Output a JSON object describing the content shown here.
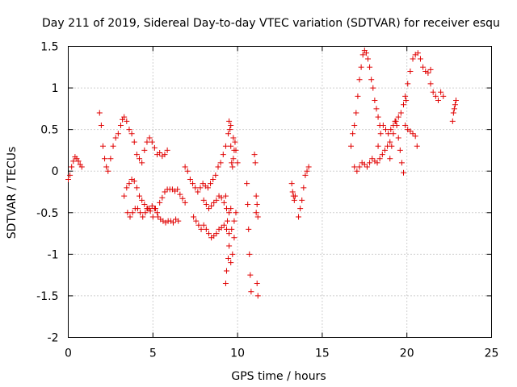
{
  "chart_data": {
    "type": "scatter",
    "title": "Day 211 of 2019, Sidereal Day-to-day VTEC variation (SDTVAR) for receiver esqu",
    "xlabel": "GPS time / hours",
    "ylabel": "SDTVAR / TECUs",
    "xlim": [
      0,
      25
    ],
    "ylim": [
      -2,
      1.5
    ],
    "xticks": [
      0,
      5,
      10,
      15,
      20,
      25
    ],
    "yticks": [
      -2,
      -1.5,
      -1,
      -0.5,
      0,
      0.5,
      1,
      1.5
    ],
    "xtick_labels": [
      "0",
      "5",
      "10",
      "15",
      "20",
      "25"
    ],
    "ytick_labels": [
      "-2",
      "-1.5",
      "-1",
      "-0.5",
      "0",
      "0.5",
      "1",
      "1.5"
    ],
    "grid": true,
    "marker": "+",
    "color": "#e00000",
    "series": [
      {
        "name": "t0",
        "x": [
          0.0,
          0.1,
          0.2,
          0.3,
          0.4,
          0.5,
          0.6,
          0.7,
          0.8
        ],
        "y": [
          -0.1,
          -0.05,
          0.05,
          0.12,
          0.17,
          0.15,
          0.12,
          0.08,
          0.05
        ]
      },
      {
        "name": "t1",
        "x": [
          1.85,
          1.95,
          2.05,
          2.15,
          2.25,
          2.35,
          2.5,
          2.65,
          2.8,
          2.95,
          3.1,
          3.2,
          3.3,
          3.45,
          3.6,
          3.75,
          3.9,
          4.05,
          4.2,
          4.35,
          4.5,
          4.65,
          4.8,
          4.95,
          5.1,
          5.25,
          5.4,
          5.55,
          5.7,
          5.85
        ],
        "y": [
          0.7,
          0.55,
          0.3,
          0.15,
          0.05,
          0.0,
          0.15,
          0.3,
          0.4,
          0.45,
          0.55,
          0.62,
          0.65,
          0.6,
          0.5,
          0.45,
          0.35,
          0.2,
          0.15,
          0.1,
          0.25,
          0.35,
          0.4,
          0.35,
          0.28,
          0.2,
          0.22,
          0.18,
          0.2,
          0.25
        ]
      },
      {
        "name": "t2",
        "x": [
          3.3,
          3.45,
          3.6,
          3.75,
          3.9,
          4.05,
          4.2,
          4.35,
          4.5,
          4.65,
          4.8,
          4.95,
          5.1,
          5.25,
          5.4,
          5.55,
          5.7,
          5.85,
          6.0,
          6.15,
          6.3,
          6.45,
          6.6,
          6.75,
          6.9
        ],
        "y": [
          -0.3,
          -0.2,
          -0.15,
          -0.1,
          -0.12,
          -0.2,
          -0.3,
          -0.35,
          -0.4,
          -0.45,
          -0.45,
          -0.42,
          -0.45,
          -0.5,
          -0.38,
          -0.32,
          -0.25,
          -0.22,
          -0.22,
          -0.22,
          -0.24,
          -0.22,
          -0.28,
          -0.33,
          -0.38
        ]
      },
      {
        "name": "t3",
        "x": [
          3.5,
          3.65,
          3.8,
          3.95,
          4.1,
          4.25,
          4.4,
          4.55,
          4.7,
          4.85,
          5.0,
          5.15,
          5.3,
          5.45,
          5.6,
          5.75,
          5.9,
          6.05,
          6.2,
          6.35,
          6.5
        ],
        "y": [
          -0.5,
          -0.55,
          -0.5,
          -0.45,
          -0.45,
          -0.5,
          -0.55,
          -0.5,
          -0.45,
          -0.48,
          -0.55,
          -0.45,
          -0.55,
          -0.58,
          -0.6,
          -0.62,
          -0.6,
          -0.6,
          -0.62,
          -0.58,
          -0.6
        ]
      },
      {
        "name": "t4",
        "x": [
          6.9,
          7.05,
          7.2,
          7.35,
          7.5,
          7.65,
          7.8,
          7.95,
          8.1,
          8.25,
          8.4,
          8.55,
          8.7,
          8.85,
          9.0,
          9.15,
          9.3,
          9.45,
          9.6,
          9.75,
          9.9,
          10.0
        ],
        "y": [
          0.05,
          0.0,
          -0.1,
          -0.15,
          -0.2,
          -0.25,
          -0.2,
          -0.15,
          -0.18,
          -0.2,
          -0.15,
          -0.1,
          -0.05,
          0.05,
          0.1,
          0.2,
          0.3,
          0.45,
          0.55,
          0.4,
          0.25,
          0.1
        ]
      },
      {
        "name": "t5",
        "x": [
          7.4,
          7.55,
          7.7,
          7.85,
          8.0,
          8.15,
          8.3,
          8.45,
          8.6,
          8.75,
          8.9,
          9.05,
          9.2,
          9.35,
          9.5,
          9.65,
          9.8
        ],
        "y": [
          -0.55,
          -0.6,
          -0.65,
          -0.7,
          -0.65,
          -0.7,
          -0.75,
          -0.8,
          -0.78,
          -0.75,
          -0.7,
          -0.68,
          -0.65,
          -0.7,
          -0.75,
          -0.7,
          -0.6
        ]
      },
      {
        "name": "t6",
        "x": [
          8.0,
          8.15,
          8.3,
          8.45,
          8.6,
          8.75,
          8.9,
          9.05,
          9.2,
          9.35,
          9.5,
          9.6
        ],
        "y": [
          -0.35,
          -0.4,
          -0.45,
          -0.42,
          -0.38,
          -0.35,
          -0.3,
          -0.32,
          -0.38,
          -0.45,
          -0.5,
          -0.45
        ]
      },
      {
        "name": "t7",
        "x": [
          9.3,
          9.4,
          9.5,
          9.6,
          9.7,
          9.8,
          9.9
        ],
        "y": [
          -0.3,
          -0.6,
          -0.9,
          -1.1,
          -1.0,
          -0.8,
          -0.5
        ]
      },
      {
        "name": "t8",
        "x": [
          9.5,
          9.55,
          9.6,
          9.65,
          9.7,
          9.75,
          9.8,
          9.85
        ],
        "y": [
          0.6,
          0.5,
          0.3,
          0.1,
          0.05,
          0.15,
          0.25,
          0.35
        ]
      },
      {
        "name": "t9",
        "x": [
          9.3,
          9.35,
          9.45
        ],
        "y": [
          -1.35,
          -1.2,
          -1.05
        ]
      },
      {
        "name": "t10",
        "x": [
          10.55,
          10.6,
          10.65,
          10.7,
          10.75,
          10.8
        ],
        "y": [
          -0.15,
          -0.4,
          -0.7,
          -1.0,
          -1.25,
          -1.45
        ]
      },
      {
        "name": "t11",
        "x": [
          11.0,
          11.05,
          11.1,
          11.15,
          11.2
        ],
        "y": [
          0.2,
          0.1,
          -0.3,
          -1.35,
          -1.5
        ]
      },
      {
        "name": "t12",
        "x": [
          11.1,
          11.15,
          11.2
        ],
        "y": [
          -0.5,
          -0.4,
          -0.55
        ]
      },
      {
        "name": "t13",
        "x": [
          13.2,
          13.25,
          13.3,
          13.35,
          13.4
        ],
        "y": [
          -0.15,
          -0.25,
          -0.3,
          -0.35,
          -0.3
        ]
      },
      {
        "name": "t14",
        "x": [
          13.6,
          13.7,
          13.8,
          13.9,
          14.0,
          14.1,
          14.2
        ],
        "y": [
          -0.55,
          -0.45,
          -0.35,
          -0.2,
          -0.05,
          0.0,
          0.05
        ]
      },
      {
        "name": "t15",
        "x": [
          16.7,
          16.8,
          16.9,
          17.0,
          17.1,
          17.2,
          17.3,
          17.4,
          17.5,
          17.6,
          17.7,
          17.8,
          17.9,
          18.0,
          18.1,
          18.2,
          18.3,
          18.4
        ],
        "y": [
          0.3,
          0.45,
          0.55,
          0.7,
          0.9,
          1.1,
          1.25,
          1.4,
          1.45,
          1.42,
          1.35,
          1.25,
          1.1,
          1.0,
          0.85,
          0.75,
          0.65,
          0.55
        ]
      },
      {
        "name": "t16",
        "x": [
          16.9,
          17.05,
          17.2,
          17.35,
          17.5,
          17.65,
          17.8,
          17.95,
          18.1,
          18.25,
          18.4,
          18.55,
          18.7,
          18.85,
          19.0
        ],
        "y": [
          0.05,
          0.0,
          0.05,
          0.1,
          0.08,
          0.05,
          0.1,
          0.15,
          0.12,
          0.1,
          0.15,
          0.2,
          0.25,
          0.3,
          0.35
        ]
      },
      {
        "name": "t17",
        "x": [
          18.3,
          18.45,
          18.6,
          18.75,
          18.9,
          19.05,
          19.2,
          19.35,
          19.5,
          19.65,
          19.8,
          19.95
        ],
        "y": [
          0.3,
          0.45,
          0.55,
          0.5,
          0.45,
          0.5,
          0.55,
          0.6,
          0.65,
          0.7,
          0.8,
          0.85
        ]
      },
      {
        "name": "t18",
        "x": [
          19.0,
          19.1,
          19.2,
          19.3,
          19.4,
          19.5,
          19.6,
          19.7,
          19.8
        ],
        "y": [
          0.15,
          0.3,
          0.45,
          0.6,
          0.55,
          0.4,
          0.25,
          0.1,
          -0.02
        ]
      },
      {
        "name": "t19",
        "x": [
          19.9,
          20.05,
          20.2,
          20.35,
          20.5,
          20.65,
          20.8,
          20.95,
          21.1,
          21.25,
          21.4
        ],
        "y": [
          0.9,
          1.05,
          1.2,
          1.35,
          1.4,
          1.42,
          1.35,
          1.25,
          1.2,
          1.18,
          1.22
        ]
      },
      {
        "name": "t20",
        "x": [
          19.9,
          20.05,
          20.2,
          20.35,
          20.5,
          20.6
        ],
        "y": [
          0.55,
          0.5,
          0.48,
          0.45,
          0.42,
          0.3
        ]
      },
      {
        "name": "t21",
        "x": [
          21.4,
          21.55,
          21.7,
          21.85,
          22.0,
          22.15
        ],
        "y": [
          1.05,
          0.95,
          0.9,
          0.85,
          0.95,
          0.9
        ]
      },
      {
        "name": "t22",
        "x": [
          22.7,
          22.75,
          22.8,
          22.85,
          22.9
        ],
        "y": [
          0.6,
          0.7,
          0.75,
          0.8,
          0.85
        ]
      }
    ]
  }
}
